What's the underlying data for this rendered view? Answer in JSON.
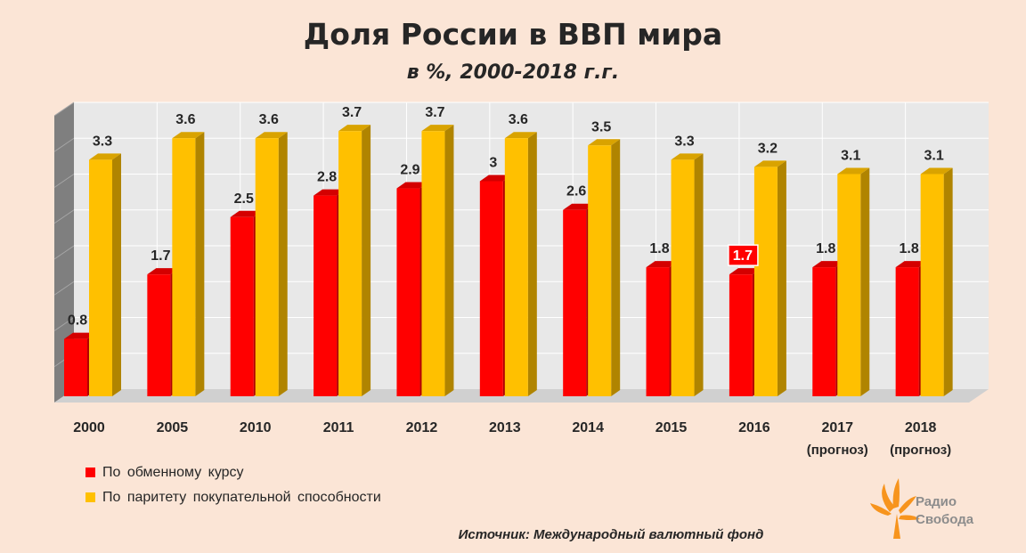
{
  "chart_data": {
    "type": "bar",
    "title": "Доля России в ВВП мира",
    "subtitle": "в %, 2000-2018 г.г.",
    "categories": [
      "2000",
      "2005",
      "2010",
      "2011",
      "2012",
      "2013",
      "2014",
      "2015",
      "2016",
      "2017",
      "2018"
    ],
    "category_notes": [
      "",
      "",
      "",
      "",
      "",
      "",
      "",
      "",
      "",
      "(прогноз)",
      "(прогноз)"
    ],
    "ylim": [
      0,
      4
    ],
    "grid": true,
    "legend_position": "bottom-left",
    "highlighted_label": {
      "series": 0,
      "category": "2016"
    },
    "series": [
      {
        "name": "По обменному курсу",
        "values": [
          0.8,
          1.7,
          2.5,
          2.8,
          2.9,
          3,
          2.6,
          1.8,
          1.7,
          1.8,
          1.8
        ],
        "labels": [
          "0.8",
          "1.7",
          "2.5",
          "2.8",
          "2.9",
          "3",
          "2.6",
          "1.8",
          "1.7",
          "1.8",
          "1.8"
        ],
        "color": "#ff0000",
        "side_color": "#b00000",
        "top_color": "#d40000"
      },
      {
        "name": "По паритету покупательной способности",
        "values": [
          3.3,
          3.6,
          3.6,
          3.7,
          3.7,
          3.6,
          3.5,
          3.3,
          3.2,
          3.1,
          3.1
        ],
        "labels": [
          "3.3",
          "3.6",
          "3.6",
          "3.7",
          "3.7",
          "3.6",
          "3.5",
          "3.3",
          "3.2",
          "3.1",
          "3.1"
        ],
        "color": "#ffc000",
        "side_color": "#b08400",
        "top_color": "#d9a300"
      }
    ]
  },
  "source": "Источник:  Международный валютный фонд",
  "logo": {
    "line1": "Радио",
    "line2": "Свобода",
    "icon": "torch-flame-icon",
    "color": "#f7941d"
  },
  "colors": {
    "background": "#fbe5d6",
    "plot_background": "#e8e8e8",
    "grid": "#ffffff"
  }
}
